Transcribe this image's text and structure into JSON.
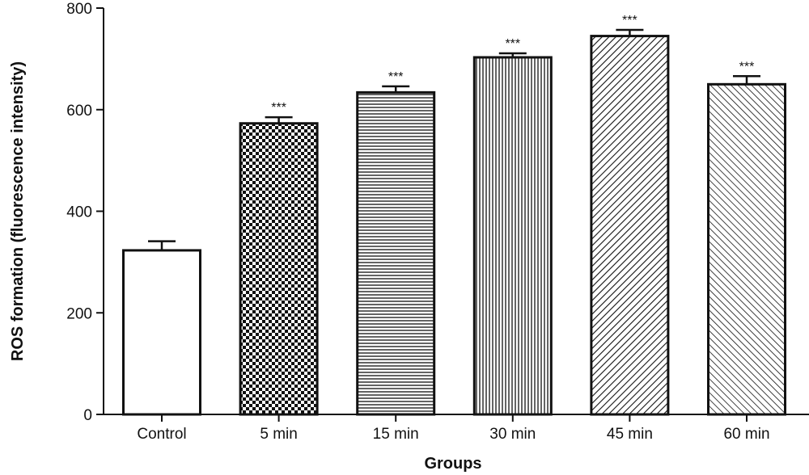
{
  "chart_data": {
    "type": "bar",
    "categories": [
      "Control",
      "5 min",
      "15 min",
      "30 min",
      "45 min",
      "60 min"
    ],
    "values": [
      323,
      573,
      634,
      703,
      745,
      650
    ],
    "errors": [
      18,
      12,
      12,
      8,
      12,
      16
    ],
    "significance": [
      "",
      "***",
      "***",
      "***",
      "***",
      "***"
    ],
    "patterns": [
      "none",
      "checker",
      "horizontal-lines",
      "vertical-lines",
      "diagonal-dense",
      "diagonal-sparse"
    ],
    "xlabel": "Groups",
    "ylabel": "ROS formation (fluorescence intensity)",
    "ylim": [
      0,
      800
    ],
    "yticks": [
      0,
      200,
      400,
      600,
      800
    ],
    "grid": false,
    "colors": {
      "bar_outline": "#111111",
      "fill": "#ffffff"
    }
  }
}
